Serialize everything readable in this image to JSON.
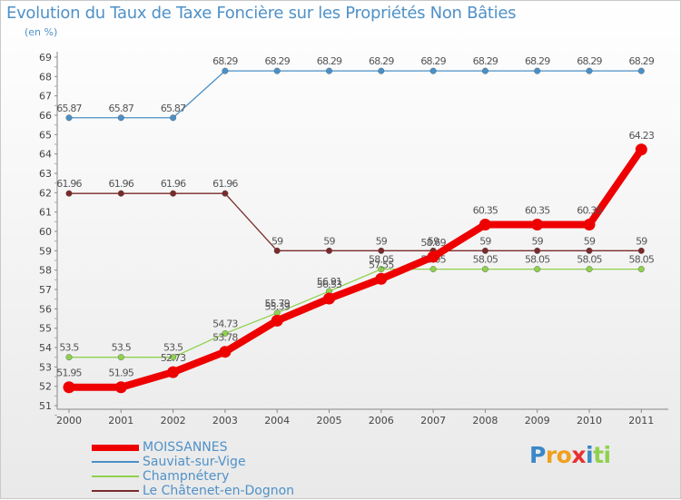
{
  "chart_data": {
    "type": "line",
    "title": "Evolution du Taux de Taxe Foncière sur les Propriétés Non Bâties",
    "ylabel": "(en %)",
    "xlabel": "",
    "categories": [
      "2000",
      "2001",
      "2002",
      "2003",
      "2004",
      "2005",
      "2006",
      "2007",
      "2008",
      "2009",
      "2010",
      "2011"
    ],
    "ylim": [
      51,
      69
    ],
    "yticks": [
      "51",
      "52",
      "53",
      "54",
      "55",
      "56",
      "57",
      "58",
      "59",
      "60",
      "61",
      "62",
      "63",
      "64",
      "65",
      "66",
      "67",
      "68",
      "69"
    ],
    "grid": false,
    "series": [
      {
        "name": "Sauviat-sur-Vige",
        "color": "#4a90c8",
        "values": [
          65.87,
          65.87,
          65.87,
          68.29,
          68.29,
          68.29,
          68.29,
          68.29,
          68.29,
          68.29,
          68.29,
          68.29
        ],
        "labels": [
          "65.87",
          "65.87",
          "65.87",
          "68.29",
          "68.29",
          "68.29",
          "68.29",
          "68.29",
          "68.29",
          "68.29",
          "68.29",
          "68.29"
        ]
      },
      {
        "name": "Le Châtenet-en-Dognon",
        "color": "#7a2a2a",
        "values": [
          61.96,
          61.96,
          61.96,
          61.96,
          59,
          59,
          59,
          59,
          59,
          59,
          59,
          59
        ],
        "labels": [
          "61.96",
          "61.96",
          "61.96",
          "61.96",
          "59",
          "59",
          "59",
          "59",
          "59",
          "59",
          "59",
          "59"
        ]
      },
      {
        "name": "Champnétery",
        "color": "#8fd14f",
        "values": [
          53.5,
          53.5,
          53.5,
          54.73,
          55.79,
          56.91,
          58.05,
          58.05,
          58.05,
          58.05,
          58.05,
          58.05
        ],
        "labels": [
          "53.5",
          "53.5",
          "53.5",
          "54.73",
          "55.79",
          "56.91",
          "58.05",
          "58.05",
          "58.05",
          "58.05",
          "58.05",
          "58.05"
        ]
      },
      {
        "name": "MOISSANNES",
        "color": "#ee0000",
        "values": [
          51.95,
          51.95,
          52.73,
          53.78,
          55.39,
          56.53,
          57.55,
          58.69,
          60.35,
          60.35,
          60.35,
          64.23
        ],
        "labels": [
          "51.95",
          "51.95",
          "52.73",
          "53.78",
          "55.39",
          "56.53",
          "57.55",
          "58.69",
          "60.35",
          "60.35",
          "60.35",
          "64.23"
        ]
      }
    ],
    "legend": [
      "MOISSANNES",
      "Sauviat-sur-Vige",
      "Champnétery",
      "Le Châtenet-en-Dognon"
    ],
    "legend_colors": [
      "#ee0000",
      "#4a90c8",
      "#8fd14f",
      "#7a2a2a"
    ],
    "legend_position": "bottom-left"
  },
  "logo": {
    "letters": [
      "P",
      "r",
      "o",
      "x",
      "i",
      "t",
      "i"
    ],
    "colors": [
      "#3a88c8",
      "#f0a020",
      "#f0a020",
      "#e83030",
      "#3a88c8",
      "#8fd14f",
      "#8fd14f"
    ]
  }
}
